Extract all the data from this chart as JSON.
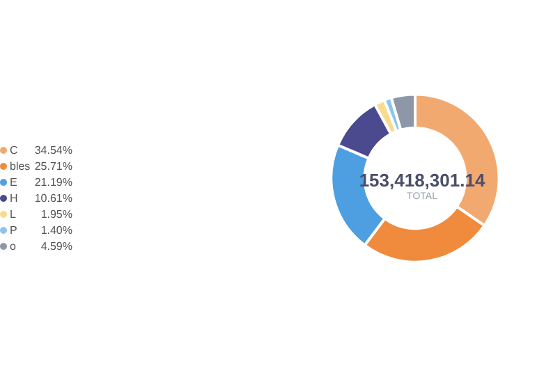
{
  "chart_data": {
    "type": "donut",
    "title": "153,418,301.14",
    "subtitle": "TOTAL",
    "categories": [
      "C",
      "bles",
      "E",
      "H",
      "L",
      "P",
      "o"
    ],
    "values": [
      34.54,
      25.71,
      21.19,
      10.61,
      1.95,
      1.4,
      4.59
    ],
    "value_labels": [
      "34.54%",
      "25.71%",
      "21.19%",
      "10.61%",
      "1.95%",
      "1.40%",
      "4.59%"
    ],
    "colors": [
      "#f2a96f",
      "#f08a3c",
      "#4e9fe2",
      "#4b4a8f",
      "#f8dc8c",
      "#8cc4f0",
      "#8d97a8"
    ],
    "legend": "left"
  }
}
